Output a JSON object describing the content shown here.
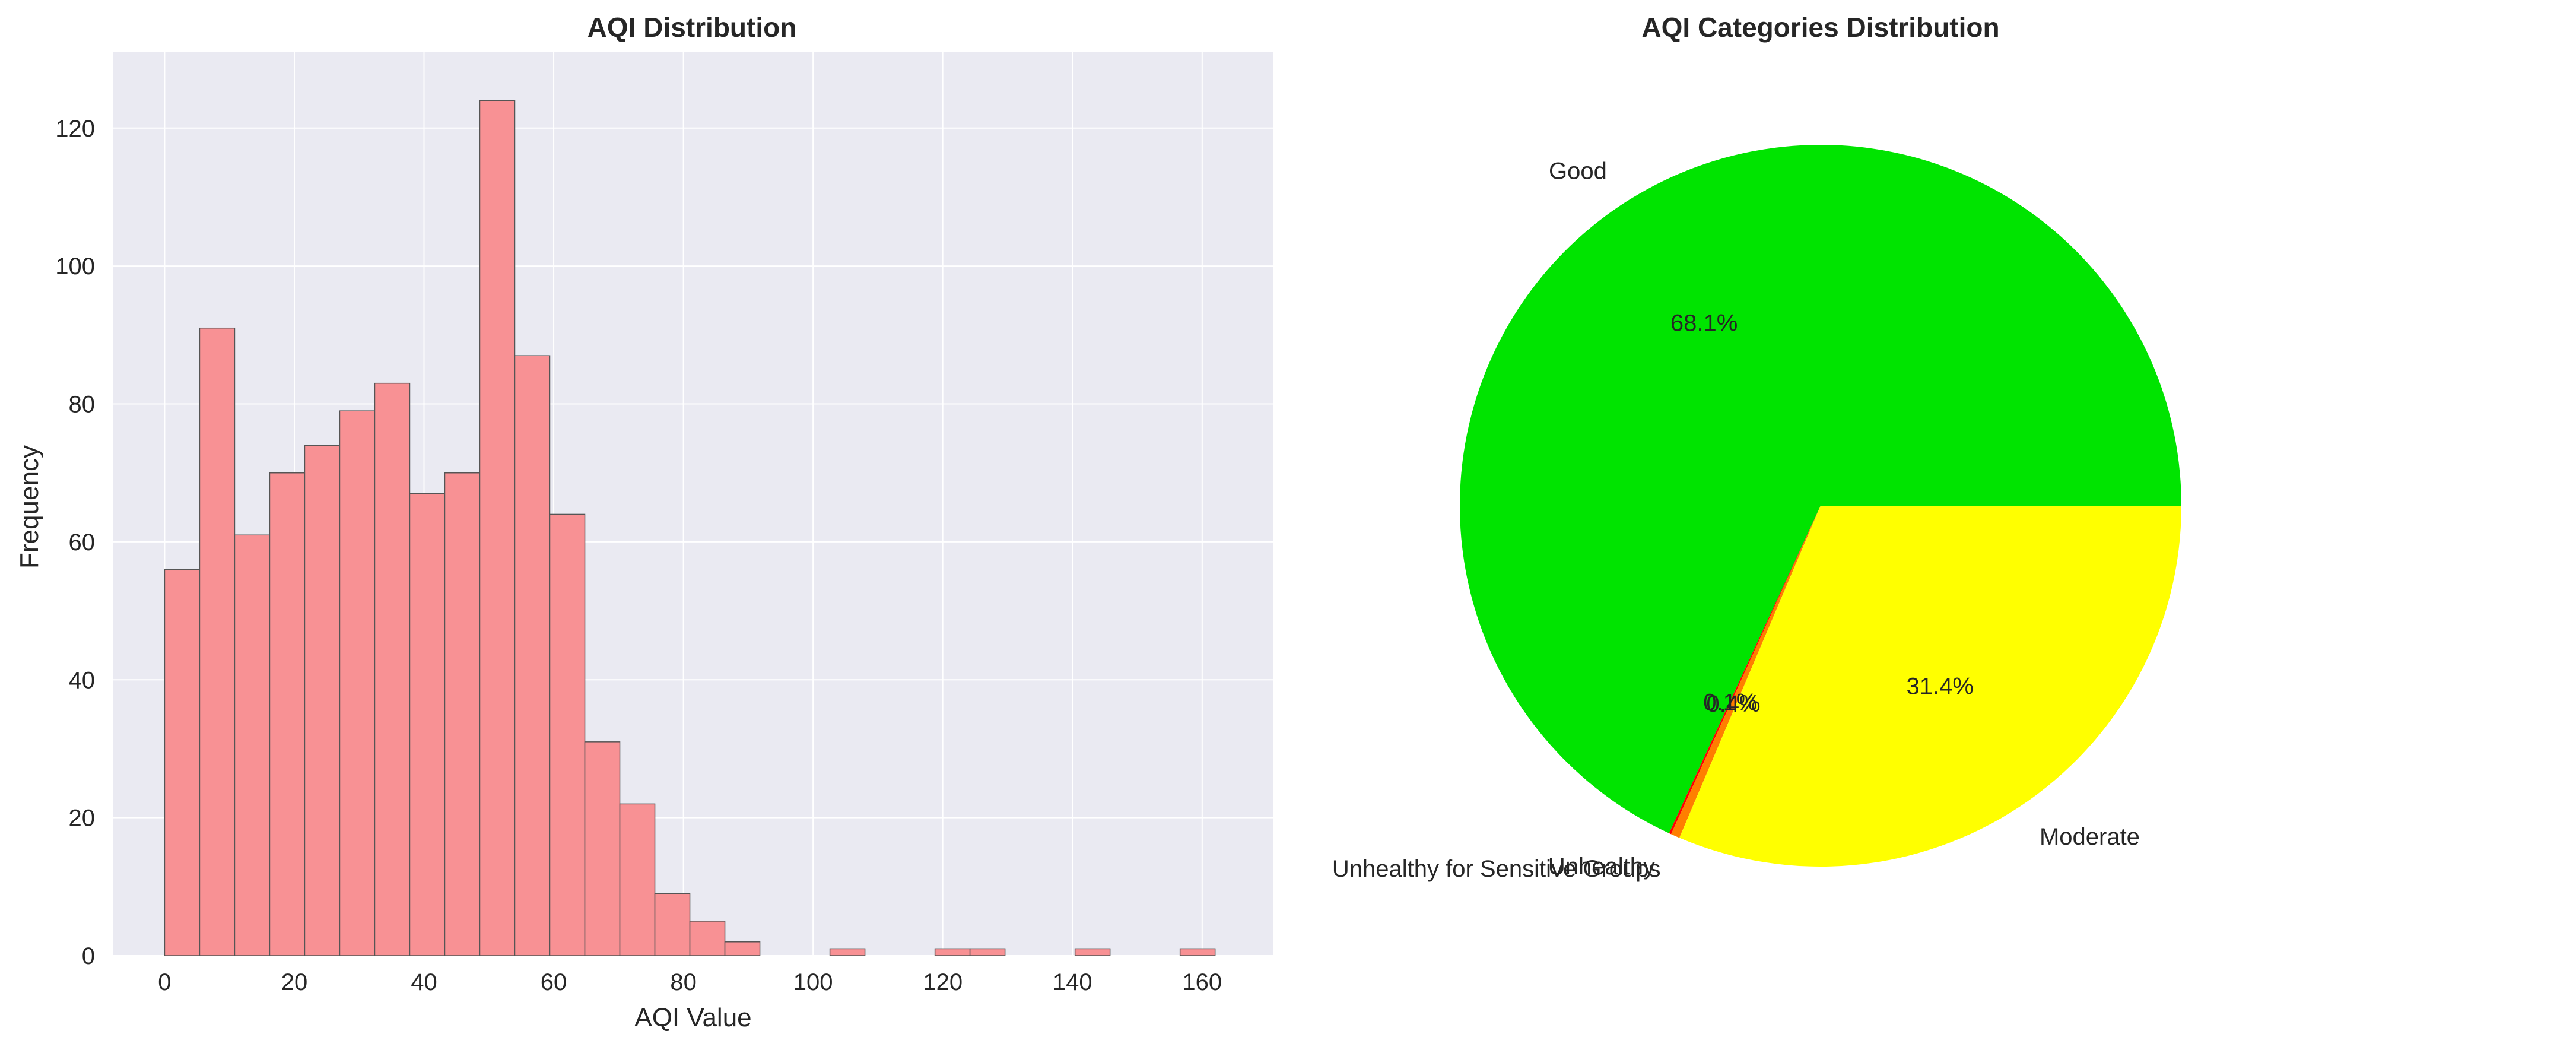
{
  "chart_data": [
    {
      "type": "bar",
      "title": "AQI Distribution",
      "xlabel": "AQI Value",
      "ylabel": "Frequency",
      "xlim": [
        -8,
        171
      ],
      "ylim": [
        0,
        131
      ],
      "xticks": [
        0,
        20,
        40,
        60,
        80,
        100,
        120,
        140,
        160
      ],
      "yticks": [
        0,
        20,
        40,
        60,
        80,
        100,
        120
      ],
      "grid": true,
      "bar_color": "#f89194",
      "edge_color": "#555555",
      "background": "#eaeaf2",
      "bins": [
        {
          "x0": 0.0,
          "x1": 5.4,
          "count": 56
        },
        {
          "x0": 5.4,
          "x1": 10.8,
          "count": 91
        },
        {
          "x0": 10.8,
          "x1": 16.2,
          "count": 61
        },
        {
          "x0": 16.2,
          "x1": 21.6,
          "count": 70
        },
        {
          "x0": 21.6,
          "x1": 27.0,
          "count": 74
        },
        {
          "x0": 27.0,
          "x1": 32.4,
          "count": 79
        },
        {
          "x0": 32.4,
          "x1": 37.8,
          "count": 83
        },
        {
          "x0": 37.8,
          "x1": 43.2,
          "count": 67
        },
        {
          "x0": 43.2,
          "x1": 48.6,
          "count": 70
        },
        {
          "x0": 48.6,
          "x1": 54.0,
          "count": 124
        },
        {
          "x0": 54.0,
          "x1": 59.4,
          "count": 87
        },
        {
          "x0": 59.4,
          "x1": 64.8,
          "count": 64
        },
        {
          "x0": 64.8,
          "x1": 70.2,
          "count": 31
        },
        {
          "x0": 70.2,
          "x1": 75.6,
          "count": 22
        },
        {
          "x0": 75.6,
          "x1": 81.0,
          "count": 9
        },
        {
          "x0": 81.0,
          "x1": 86.4,
          "count": 5
        },
        {
          "x0": 86.4,
          "x1": 91.8,
          "count": 2
        },
        {
          "x0": 91.8,
          "x1": 97.2,
          "count": 0
        },
        {
          "x0": 97.2,
          "x1": 102.6,
          "count": 0
        },
        {
          "x0": 102.6,
          "x1": 108.0,
          "count": 1
        },
        {
          "x0": 108.0,
          "x1": 113.4,
          "count": 0
        },
        {
          "x0": 113.4,
          "x1": 118.8,
          "count": 0
        },
        {
          "x0": 118.8,
          "x1": 124.2,
          "count": 1
        },
        {
          "x0": 124.2,
          "x1": 129.6,
          "count": 1
        },
        {
          "x0": 129.6,
          "x1": 135.0,
          "count": 0
        },
        {
          "x0": 135.0,
          "x1": 140.4,
          "count": 0
        },
        {
          "x0": 140.4,
          "x1": 145.8,
          "count": 1
        },
        {
          "x0": 145.8,
          "x1": 151.2,
          "count": 0
        },
        {
          "x0": 151.2,
          "x1": 156.6,
          "count": 0
        },
        {
          "x0": 156.6,
          "x1": 162.0,
          "count": 1
        }
      ]
    },
    {
      "type": "pie",
      "title": "AQI Categories Distribution",
      "slices": [
        {
          "label": "Good",
          "value": 68.1,
          "pct_label": "68.1%",
          "color": "#00e400"
        },
        {
          "label": "Unhealthy",
          "value": 0.1,
          "pct_label": "0.1%",
          "color": "#ff0000"
        },
        {
          "label": "Unhealthy for Sensitive Groups",
          "value": 0.4,
          "pct_label": "0.4%",
          "color": "#ff7e00"
        },
        {
          "label": "Moderate",
          "value": 31.4,
          "pct_label": "31.4%",
          "color": "#ffff00"
        }
      ]
    }
  ]
}
